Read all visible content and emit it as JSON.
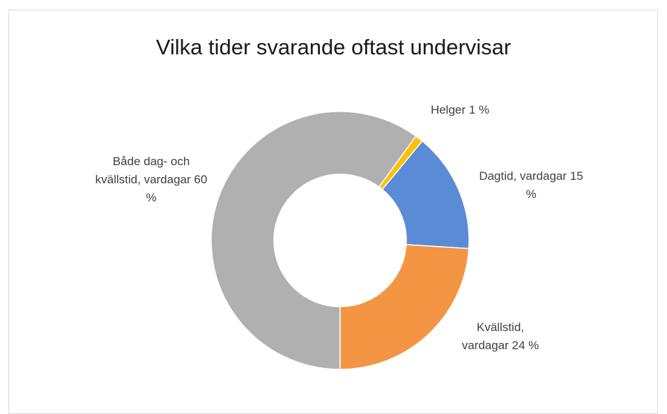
{
  "chart_data": {
    "type": "donut",
    "title": "Vilka tider svarande oftast undervisar",
    "categories": [
      "Helger",
      "Dagtid, vardagar",
      "Kvällstid, vardagar",
      "Både dag- och kvällstid, vardagar"
    ],
    "values": [
      1,
      15,
      24,
      60
    ],
    "value_labels": [
      "1 %",
      "15 %",
      "24 %",
      "60 %"
    ],
    "colors": [
      "#ffc000",
      "#5b8bd6",
      "#f39542",
      "#b0b0b0"
    ]
  }
}
